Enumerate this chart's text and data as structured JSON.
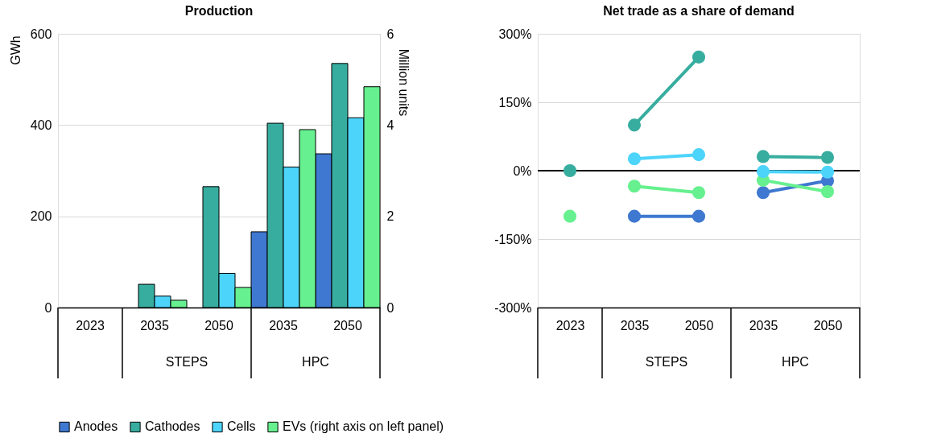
{
  "chart_data": [
    {
      "type": "bar",
      "title": "Production",
      "ylabel": "GWh",
      "y2label": "Million units",
      "categories": [
        "2023",
        "2035",
        "2050",
        "2035",
        "2050"
      ],
      "ylim": [
        0,
        600
      ],
      "yticks": [
        0,
        200,
        400,
        600
      ],
      "y2lim": [
        0,
        6
      ],
      "y2ticks": [
        0,
        2,
        4,
        6
      ],
      "grid": "y",
      "legend": "bottom",
      "annotations": [
        "STEPS",
        "HPC"
      ],
      "series": [
        {
          "name": "Anodes",
          "color": "#3f78d0",
          "values": [
            null,
            null,
            null,
            166,
            337
          ]
        },
        {
          "name": "Cathodes",
          "color": "#37ad9f",
          "values": [
            null,
            51,
            265,
            404,
            535
          ]
        },
        {
          "name": "Cells",
          "color": "#4dd4fb",
          "values": [
            null,
            25,
            75,
            308,
            416
          ]
        },
        {
          "name": "EVs (right axis on left panel)",
          "color": "#66f08f",
          "axis": "y2",
          "values": [
            null,
            0.16,
            0.44,
            3.9,
            4.84
          ]
        }
      ]
    },
    {
      "type": "line",
      "title": "Net trade as a share of demand",
      "categories": [
        "2023",
        "2035",
        "2050",
        "2035",
        "2050"
      ],
      "ylim": [
        -300,
        300
      ],
      "yticks": [
        {
          "value": -300,
          "label": "-300%"
        },
        {
          "value": -150,
          "label": "-150%"
        },
        {
          "value": 0,
          "label": "0%"
        },
        {
          "value": 150,
          "label": "150%"
        },
        {
          "value": 300,
          "label": "300%"
        }
      ],
      "grid": "y",
      "marker": "circle",
      "line_style": "solid",
      "ref_lines": [
        {
          "axis": "y",
          "value": 0,
          "color": "#000000"
        }
      ],
      "annotations": [
        "STEPS",
        "HPC"
      ],
      "series": [
        {
          "color": "#37ad9f",
          "values": [
            0,
            null,
            null,
            null,
            null
          ]
        },
        {
          "color": "#66f08f",
          "values": [
            -100,
            null,
            null,
            null,
            null
          ]
        },
        {
          "color": "#3f78d0",
          "values": [
            null,
            -100,
            -100,
            null,
            null
          ]
        },
        {
          "color": "#66f08f",
          "values": [
            null,
            -34,
            -48,
            null,
            null
          ]
        },
        {
          "color": "#4dd4fb",
          "values": [
            null,
            26,
            35,
            null,
            null
          ]
        },
        {
          "color": "#37ad9f",
          "values": [
            null,
            100,
            249,
            null,
            null
          ]
        },
        {
          "color": "#3f78d0",
          "values": [
            null,
            null,
            null,
            -48,
            -22
          ]
        },
        {
          "color": "#66f08f",
          "values": [
            null,
            null,
            null,
            -21,
            -46
          ]
        },
        {
          "color": "#4dd4fb",
          "values": [
            null,
            null,
            null,
            -2,
            -3
          ]
        },
        {
          "color": "#37ad9f",
          "values": [
            null,
            null,
            null,
            31,
            29
          ]
        }
      ]
    }
  ]
}
